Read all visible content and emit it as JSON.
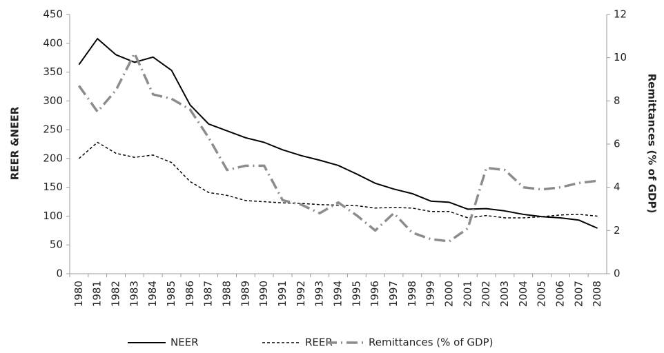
{
  "chart_data": {
    "type": "line",
    "y_label": "REER &NEER",
    "y2_label": "Remittances (% of GDP)",
    "categories": [
      "1980",
      "1981",
      "1982",
      "1983",
      "1984",
      "1985",
      "1986",
      "1987",
      "1988",
      "1989",
      "1990",
      "1991",
      "1992",
      "1993",
      "1994",
      "1995",
      "1996",
      "1997",
      "1998",
      "1999",
      "2000",
      "2001",
      "2002",
      "2003",
      "2004",
      "2005",
      "2006",
      "2007",
      "2008"
    ],
    "series": [
      {
        "name": "NEER",
        "color": "#000000",
        "style": "solid",
        "values": [
          363,
          408,
          380,
          367,
          376,
          353,
          293,
          260,
          248,
          236,
          228,
          215,
          205,
          197,
          188,
          173,
          157,
          147,
          139,
          126,
          124,
          112,
          113,
          109,
          103,
          99,
          97,
          93,
          79
        ]
      },
      {
        "name": "REER",
        "color": "#000000",
        "style": "dashed",
        "values": [
          200,
          228,
          209,
          202,
          206,
          193,
          160,
          141,
          136,
          127,
          125,
          123,
          122,
          120,
          119,
          118,
          114,
          115,
          114,
          108,
          108,
          97,
          101,
          97,
          97,
          99,
          102,
          103,
          100
        ]
      },
      {
        "name": "Remittances (% of GDP)",
        "color": "#8c8c8c",
        "style": "dashdot",
        "axis": "y2",
        "values": [
          8.7,
          7.5,
          8.5,
          10.2,
          8.3,
          8.1,
          7.6,
          6.3,
          4.8,
          5.0,
          5.0,
          3.4,
          3.2,
          2.8,
          3.3,
          2.7,
          2.0,
          2.8,
          1.9,
          1.6,
          1.5,
          2.1,
          4.9,
          4.8,
          4.0,
          3.9,
          4.0,
          4.2,
          4.3
        ]
      }
    ],
    "ylim": [
      0,
      450
    ],
    "yticks": [
      0,
      50,
      100,
      150,
      200,
      250,
      300,
      350,
      400,
      450
    ],
    "y2lim": [
      0,
      12
    ],
    "y2ticks": [
      0,
      2,
      4,
      6,
      8,
      10,
      12
    ],
    "grid": false,
    "legend": "bottom"
  }
}
